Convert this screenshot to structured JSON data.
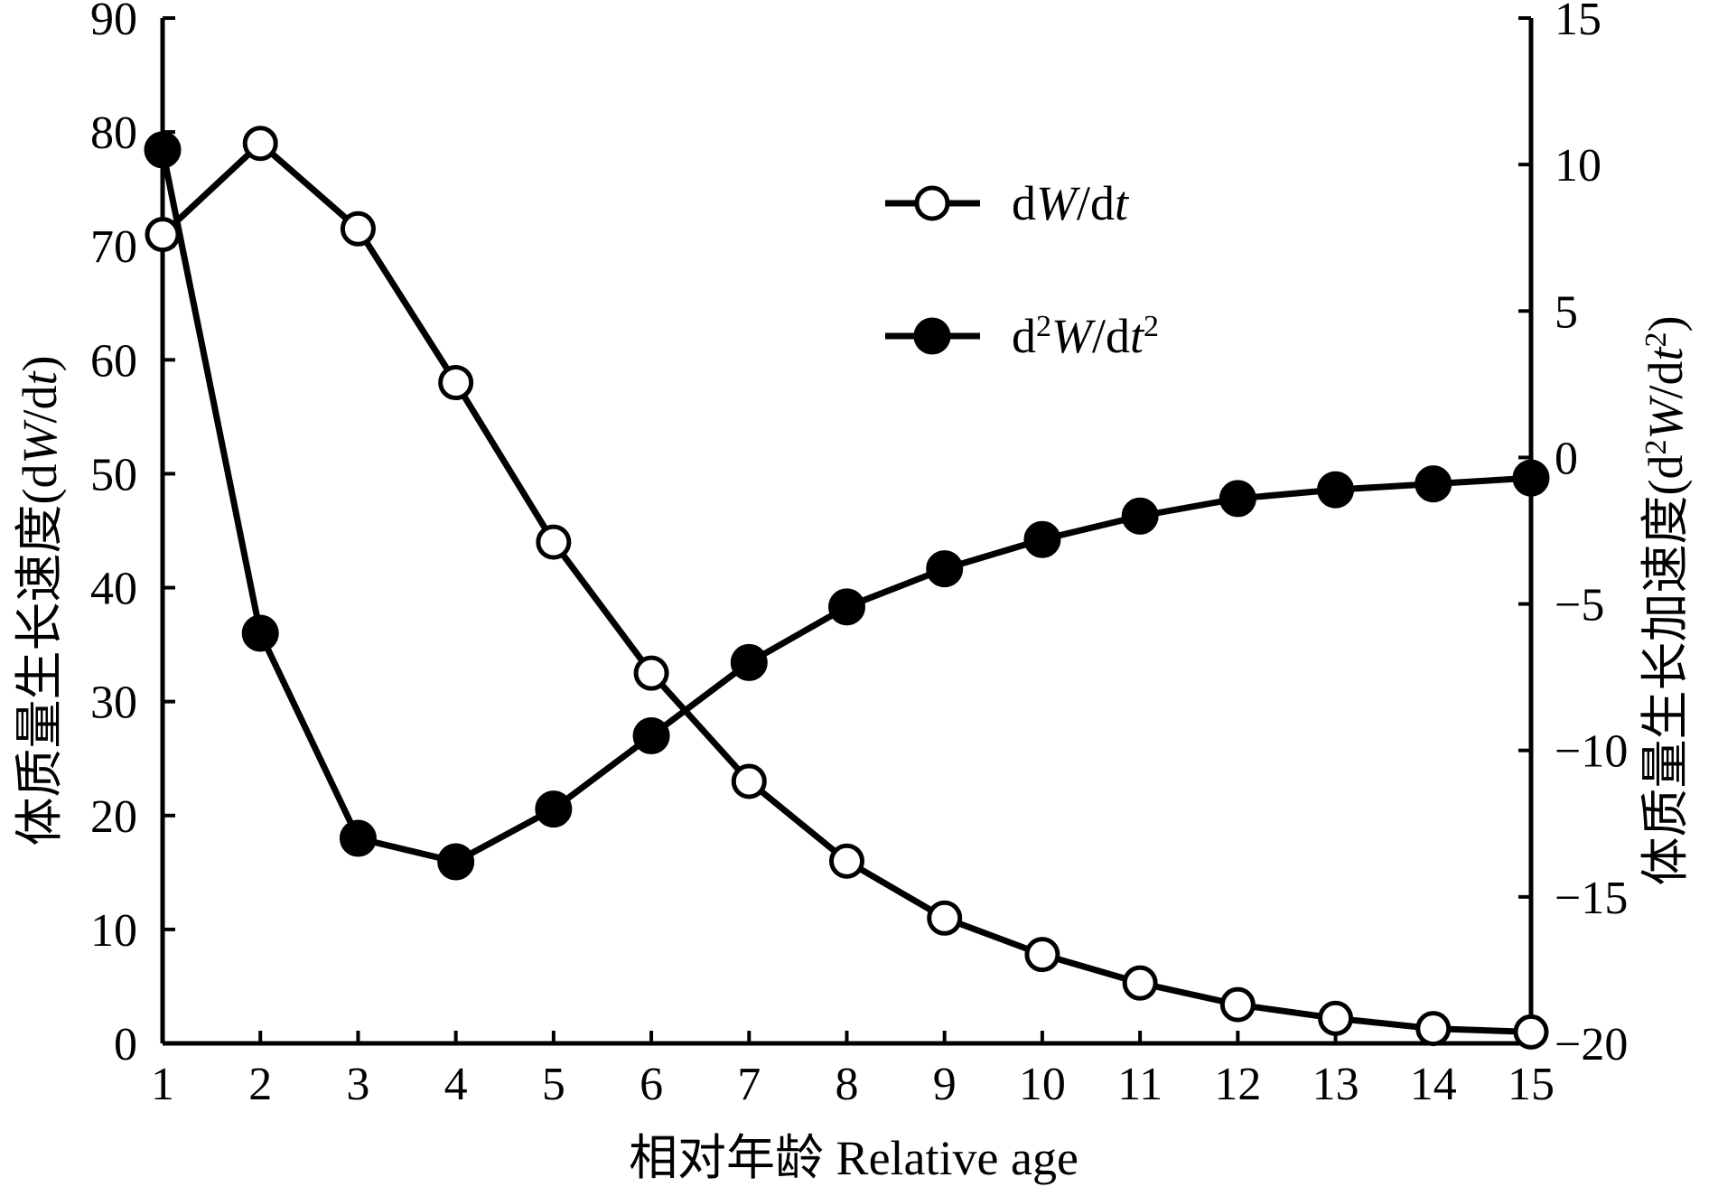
{
  "chart_data": {
    "type": "line",
    "x": [
      1,
      2,
      3,
      4,
      5,
      6,
      7,
      8,
      9,
      10,
      11,
      12,
      13,
      14,
      15
    ],
    "x_ticks": [
      "1",
      "2",
      "3",
      "4",
      "5",
      "6",
      "7",
      "8",
      "9",
      "10",
      "11",
      "12",
      "13",
      "14",
      "15"
    ],
    "xlabel": "相对年龄 Relative age",
    "ylabel_left": {
      "prefix": "体质量生长速度(d",
      "italic": "W",
      "mid": "/d",
      "italic2": "t",
      "suffix": ")"
    },
    "ylabel_right": {
      "prefix": "体质量生长加速度(d",
      "sup1": "2",
      "italic": "W",
      "mid": "/d",
      "italic2": "t",
      "sup2": "2",
      "suffix": ")"
    },
    "ylim_left": [
      0,
      90
    ],
    "left_ticks": [
      "0",
      "10",
      "20",
      "30",
      "40",
      "50",
      "60",
      "70",
      "80",
      "90"
    ],
    "ylim_right": [
      -20,
      15
    ],
    "right_ticks": [
      "−20",
      "−15",
      "−10",
      "−5",
      "0",
      "5",
      "10",
      "15"
    ],
    "grid": false,
    "legend_position": "top-center",
    "series": [
      {
        "axis": "left",
        "marker": "open-circle",
        "legend": {
          "a": "d",
          "b": "W",
          "c": "/d",
          "d": "t"
        },
        "values": [
          71,
          79,
          71.5,
          58,
          44,
          32.5,
          23,
          16,
          11,
          7.8,
          5.3,
          3.4,
          2.2,
          1.3,
          1.0
        ]
      },
      {
        "axis": "right",
        "marker": "filled-circle",
        "legend": {
          "a": "d",
          "sup1": "2",
          "b": "W",
          "c": "/d",
          "d": "t",
          "sup2": "2"
        },
        "values": [
          10.5,
          -6.0,
          -13.0,
          -13.8,
          -12.0,
          -9.5,
          -7.0,
          -5.1,
          -3.8,
          -2.8,
          -2.0,
          -1.4,
          -1.1,
          -0.9,
          -0.7
        ]
      }
    ]
  }
}
